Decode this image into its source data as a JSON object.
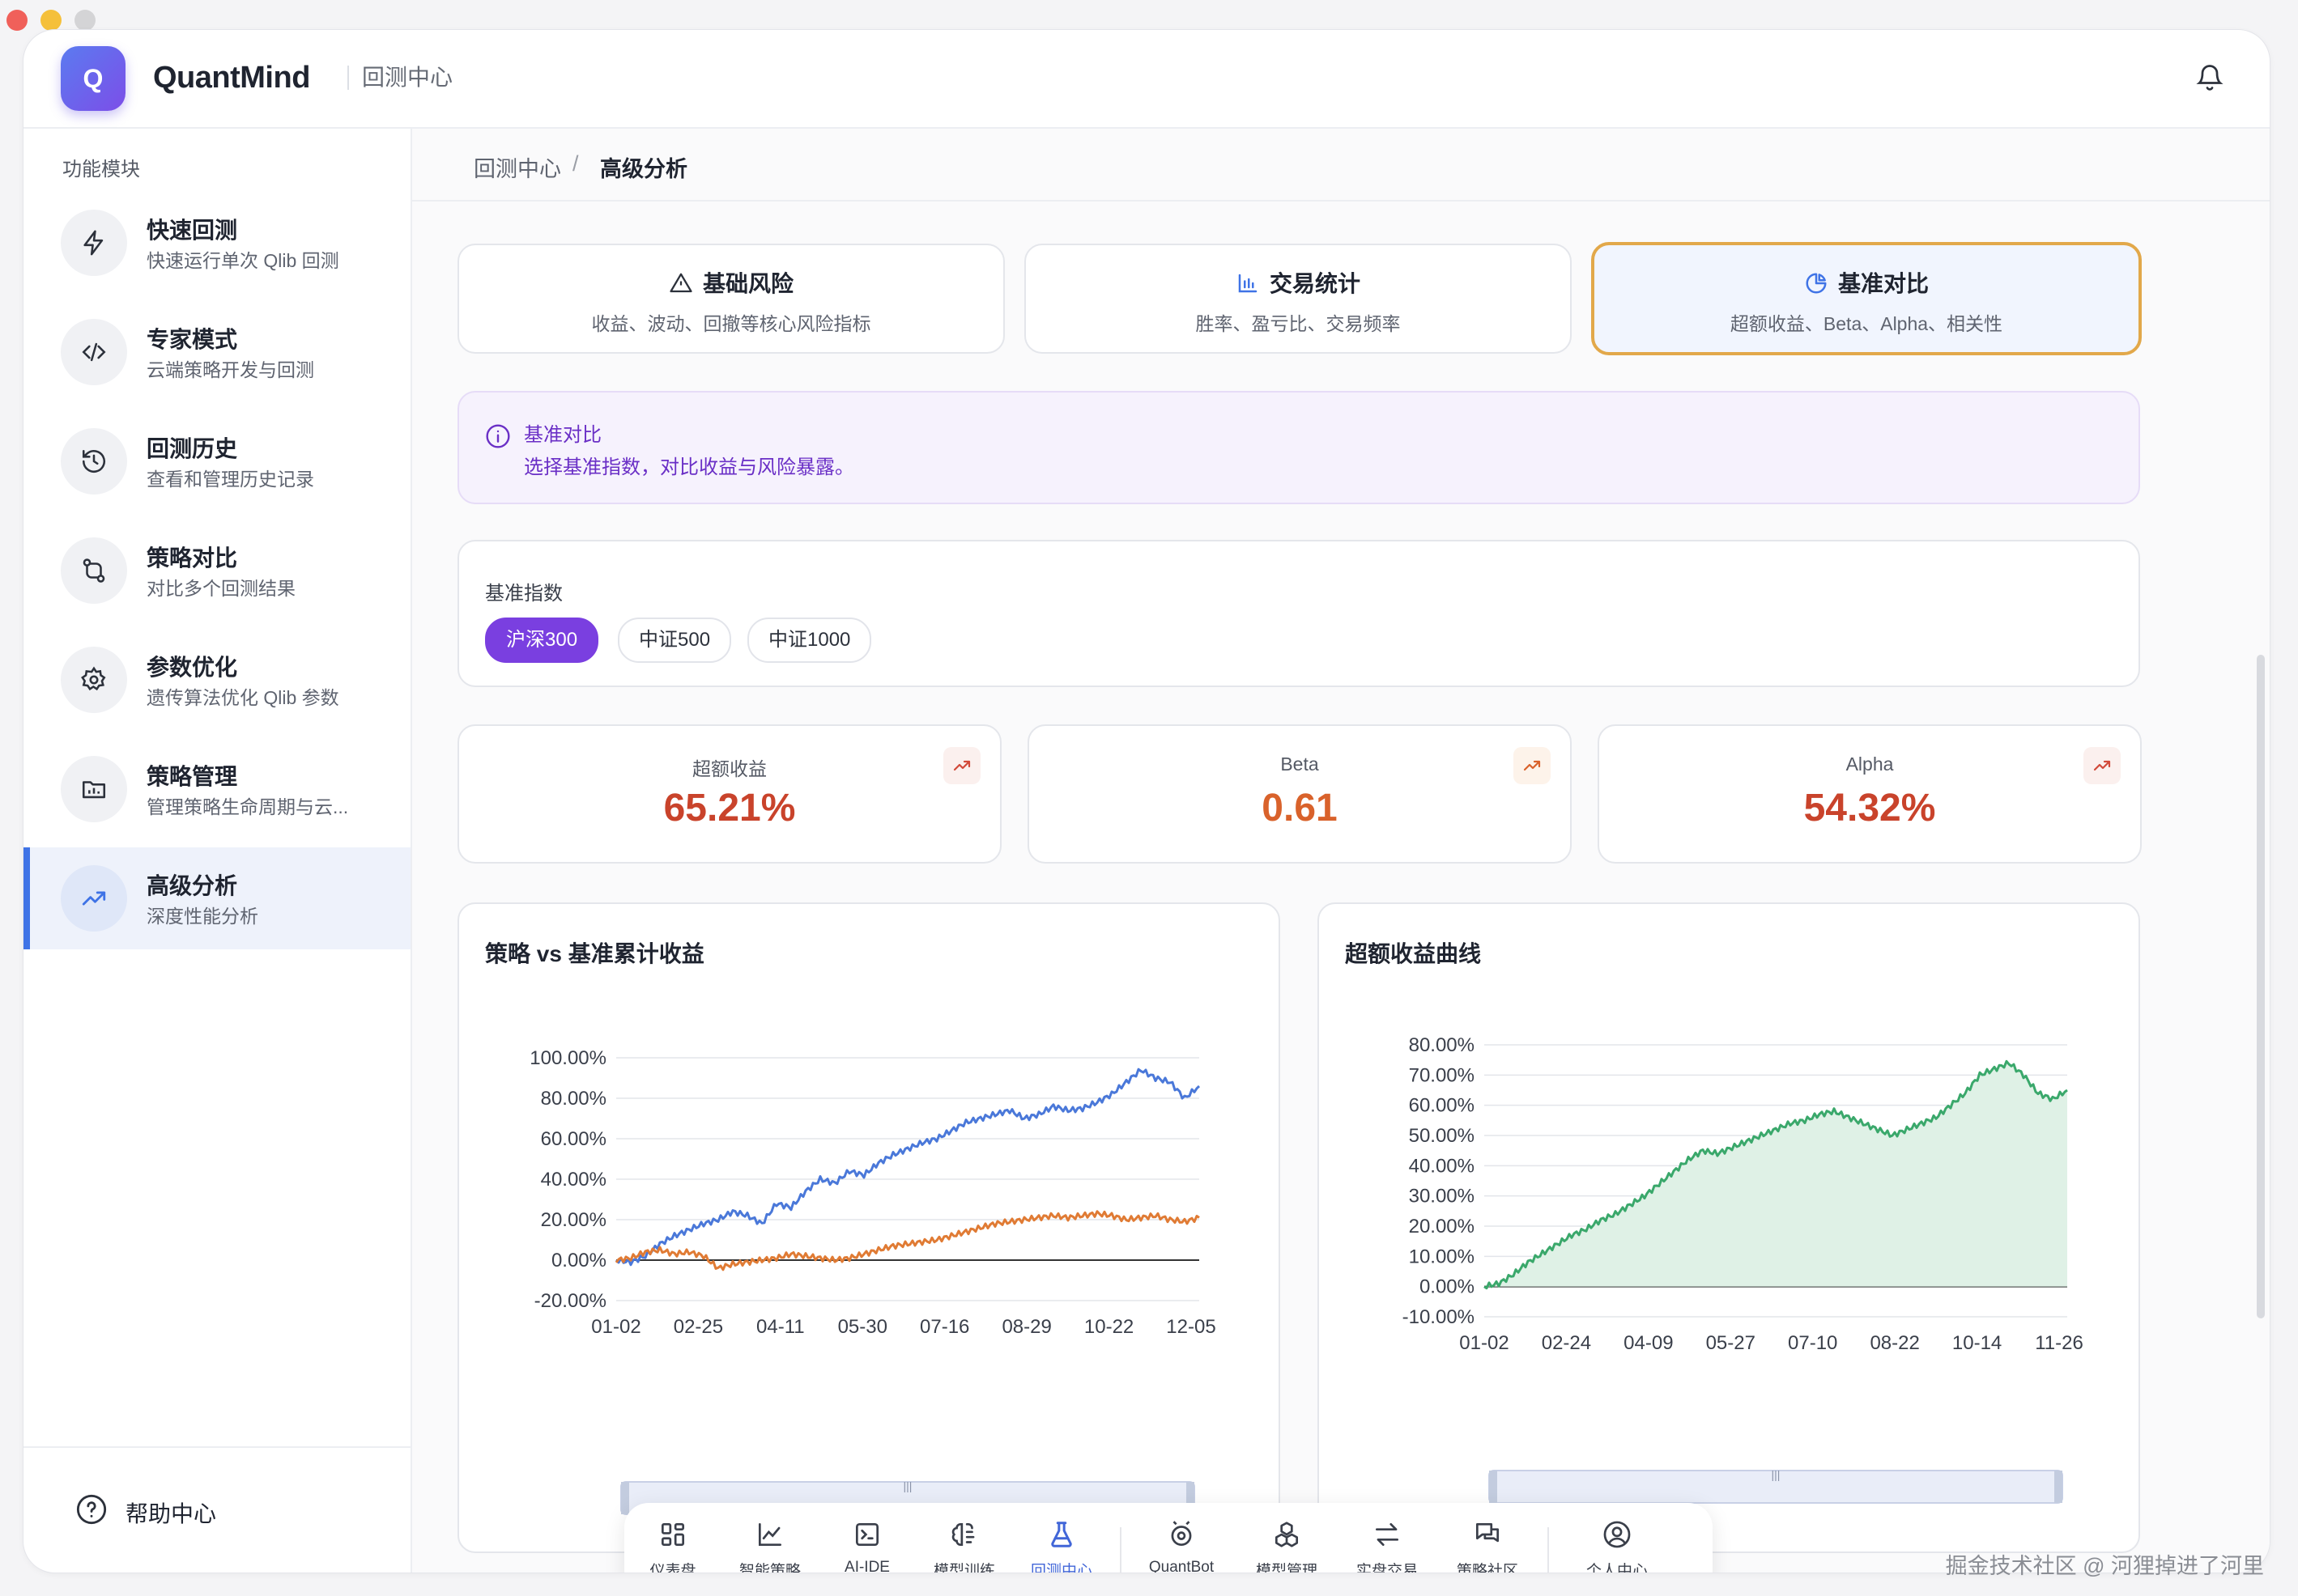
{
  "app": {
    "brand": "QuantMind",
    "logo_letter": "Q",
    "section": "回测中心"
  },
  "sidebar": {
    "title": "功能模块",
    "items": [
      {
        "label": "快速回测",
        "desc": "快速运行单次 Qlib 回测",
        "icon": "lightning-icon"
      },
      {
        "label": "专家模式",
        "desc": "云端策略开发与回测",
        "icon": "code-icon"
      },
      {
        "label": "回测历史",
        "desc": "查看和管理历史记录",
        "icon": "history-icon"
      },
      {
        "label": "策略对比",
        "desc": "对比多个回测结果",
        "icon": "compare-icon"
      },
      {
        "label": "参数优化",
        "desc": "遗传算法优化 Qlib 参数",
        "icon": "gear-icon"
      },
      {
        "label": "策略管理",
        "desc": "管理策略生命周期与云...",
        "icon": "folder-icon"
      },
      {
        "label": "高级分析",
        "desc": "深度性能分析",
        "icon": "trend-icon",
        "active": true
      }
    ],
    "help": "帮助中心"
  },
  "breadcrumb": {
    "root": "回测中心",
    "sep": "/",
    "current": "高级分析"
  },
  "tabs": [
    {
      "title": "基础风险",
      "desc": "收益、波动、回撤等核心风险指标",
      "icon": "warning-icon"
    },
    {
      "title": "交易统计",
      "desc": "胜率、盈亏比、交易频率",
      "icon": "bar-chart-icon"
    },
    {
      "title": "基准对比",
      "desc": "超额收益、Beta、Alpha、相关性",
      "icon": "pie-chart-icon",
      "selected": true
    }
  ],
  "info": {
    "title": "基准对比",
    "text": "选择基准指数，对比收益与风险暴露。"
  },
  "benchmark": {
    "label": "基准指数",
    "options": [
      "沪深300",
      "中证500",
      "中证1000"
    ],
    "selected": "沪深300"
  },
  "metrics": [
    {
      "label": "超额收益",
      "value": "65.21%",
      "color": "#c9432b"
    },
    {
      "label": "Beta",
      "value": "0.61",
      "color": "#d9622b"
    },
    {
      "label": "Alpha",
      "value": "54.32%",
      "color": "#c9432b"
    }
  ],
  "chart_data": [
    {
      "type": "line",
      "title": "策略 vs 基准累计收益",
      "x_ticks": [
        "01-02",
        "02-25",
        "04-11",
        "05-30",
        "07-16",
        "08-29",
        "10-22",
        "12-05"
      ],
      "y_ticks": [
        "100.00%",
        "80.00%",
        "60.00%",
        "40.00%",
        "20.00%",
        "0.00%",
        "-20.00%"
      ],
      "ylim": [
        -20,
        100
      ],
      "grid": true,
      "series": [
        {
          "color": "#4a78d9",
          "values": [
            0,
            -1,
            2,
            8,
            12,
            15,
            18,
            20,
            24,
            22,
            18,
            28,
            26,
            34,
            40,
            38,
            44,
            42,
            48,
            52,
            55,
            58,
            60,
            64,
            68,
            70,
            72,
            74,
            70,
            72,
            76,
            74,
            75,
            78,
            82,
            88,
            94,
            90,
            88,
            80,
            86
          ]
        },
        {
          "color": "#e07b34",
          "values": [
            0,
            1,
            4,
            5,
            3,
            4,
            2,
            -4,
            -2,
            -1,
            0,
            1,
            3,
            2,
            1,
            0,
            1,
            3,
            5,
            7,
            8,
            9,
            10,
            12,
            14,
            16,
            18,
            19,
            20,
            21,
            22,
            21,
            22,
            23,
            22,
            20,
            21,
            22,
            20,
            19,
            21
          ]
        }
      ]
    },
    {
      "type": "area",
      "title": "超额收益曲线",
      "x_ticks": [
        "01-02",
        "02-24",
        "04-09",
        "05-27",
        "07-10",
        "08-22",
        "10-14",
        "11-26"
      ],
      "y_ticks": [
        "80.00%",
        "70.00%",
        "60.00%",
        "50.00%",
        "40.00%",
        "30.00%",
        "20.00%",
        "10.00%",
        "0.00%",
        "-10.00%"
      ],
      "ylim": [
        -10,
        80
      ],
      "grid": true,
      "series": [
        {
          "color": "#3aa86b",
          "values": [
            0,
            1,
            4,
            8,
            11,
            14,
            17,
            19,
            22,
            24,
            27,
            30,
            34,
            38,
            42,
            45,
            44,
            46,
            48,
            50,
            52,
            54,
            55,
            57,
            58,
            56,
            54,
            52,
            50,
            52,
            54,
            56,
            60,
            64,
            70,
            72,
            74,
            70,
            64,
            62,
            65
          ]
        }
      ]
    }
  ],
  "dock": [
    {
      "label": "仪表盘",
      "icon": "grid-icon"
    },
    {
      "label": "智能策略",
      "icon": "line-chart-icon"
    },
    {
      "label": "AI-IDE",
      "icon": "terminal-icon"
    },
    {
      "label": "模型训练",
      "icon": "brain-icon"
    },
    {
      "label": "回测中心",
      "icon": "flask-icon",
      "active": true
    },
    {
      "label": "QuantBot",
      "icon": "bot-icon"
    },
    {
      "label": "模型管理",
      "icon": "cubes-icon"
    },
    {
      "label": "实盘交易",
      "icon": "swap-icon"
    },
    {
      "label": "策略社区",
      "icon": "chat-icon"
    },
    {
      "label": "个人中心",
      "icon": "user-icon"
    }
  ],
  "watermark": "掘金技术社区 @ 河狸掉进了河里",
  "colors": {
    "accent": "#7a3fe0",
    "primary": "#3f73e6",
    "selected_border": "#e2a84a"
  }
}
